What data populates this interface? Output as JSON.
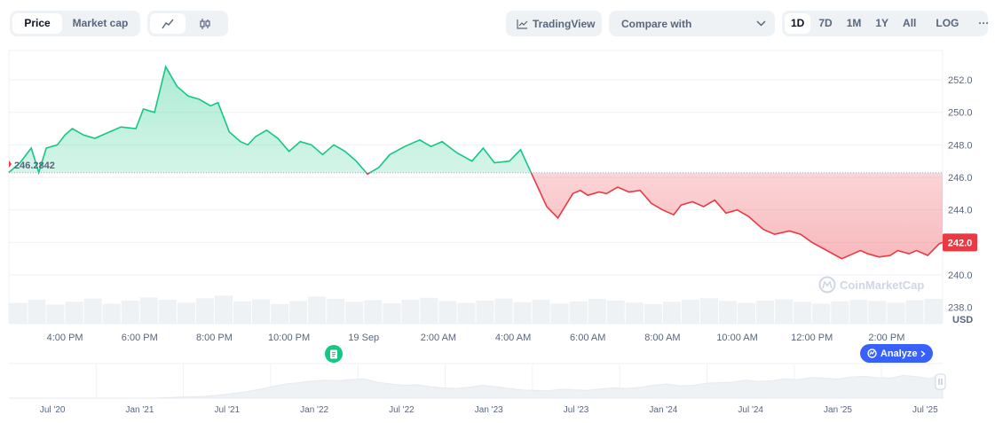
{
  "toolbar": {
    "metric_tabs": [
      {
        "label": "Price",
        "active": true
      },
      {
        "label": "Market cap",
        "active": false
      }
    ],
    "chart_types": [
      {
        "icon": "line-chart-icon",
        "active": true
      },
      {
        "icon": "candlestick-icon",
        "active": false
      }
    ],
    "tradingview_label": "TradingView",
    "compare_label": "Compare with",
    "ranges": [
      {
        "label": "1D",
        "active": true
      },
      {
        "label": "7D",
        "active": false
      },
      {
        "label": "1M",
        "active": false
      },
      {
        "label": "1Y",
        "active": false
      },
      {
        "label": "All",
        "active": false
      }
    ],
    "log_label": "LOG",
    "more_label": "···"
  },
  "chart_data": {
    "type": "area",
    "title": "",
    "baseline": 246.2842,
    "baseline_label": "246.2842",
    "current_value": 242.0,
    "current_label": "242.0",
    "currency_label": "USD",
    "watermark": "CoinMarketCap",
    "ylim": [
      237.0,
      253.8
    ],
    "y_ticks": [
      252.0,
      250.0,
      248.0,
      246.0,
      244.0,
      242.0,
      240.0,
      238.0
    ],
    "y_tick_labels": [
      "252.0",
      "250.0",
      "248.0",
      "246.0",
      "244.0",
      "242.0",
      "240.0",
      "238.0"
    ],
    "x_ticks": [
      1.5,
      3.5,
      5.5,
      7.5,
      9.5,
      11.5,
      13.5,
      15.5,
      17.5,
      19.5,
      21.5,
      23.5
    ],
    "x_tick_labels": [
      "4:00 PM",
      "6:00 PM",
      "8:00 PM",
      "10:00 PM",
      "19 Sep",
      "2:00 AM",
      "4:00 AM",
      "6:00 AM",
      "8:00 AM",
      "10:00 AM",
      "12:00 PM",
      "2:00 PM"
    ],
    "xlim": [
      0,
      25
    ],
    "series": [
      {
        "name": "price",
        "x": [
          0,
          0.3,
          0.6,
          0.8,
          1.0,
          1.3,
          1.5,
          1.7,
          2.0,
          2.3,
          2.6,
          3.0,
          3.4,
          3.6,
          3.9,
          4.2,
          4.5,
          4.8,
          5.1,
          5.4,
          5.6,
          5.9,
          6.2,
          6.4,
          6.6,
          6.9,
          7.2,
          7.5,
          7.8,
          8.1,
          8.4,
          8.7,
          9.0,
          9.3,
          9.6,
          9.9,
          10.2,
          10.6,
          11.0,
          11.3,
          11.6,
          12.0,
          12.4,
          12.7,
          13.0,
          13.4,
          13.7,
          14.0,
          14.4,
          14.7,
          15.1,
          15.3,
          15.5,
          15.8,
          16.0,
          16.3,
          16.6,
          16.9,
          17.2,
          17.5,
          17.8,
          18.0,
          18.3,
          18.6,
          18.9,
          19.2,
          19.5,
          19.8,
          20.2,
          20.5,
          20.9,
          21.2,
          21.5,
          21.9,
          22.3,
          22.6,
          22.8,
          23.0,
          23.3,
          23.6,
          23.8,
          24.1,
          24.3,
          24.6,
          24.9,
          25.0
        ],
        "values": [
          246.3,
          246.9,
          247.8,
          246.3,
          247.8,
          248.0,
          248.6,
          249.0,
          248.6,
          248.4,
          248.7,
          249.1,
          249.0,
          250.2,
          250.0,
          252.8,
          251.6,
          251.0,
          250.8,
          250.4,
          250.6,
          248.8,
          248.2,
          248.0,
          248.5,
          248.9,
          248.4,
          247.6,
          248.2,
          248.0,
          247.4,
          248.0,
          247.6,
          247.0,
          246.2,
          246.6,
          247.4,
          247.9,
          248.3,
          247.9,
          248.2,
          247.5,
          247.0,
          247.8,
          246.9,
          247.0,
          247.7,
          246.2,
          244.2,
          243.5,
          245.0,
          245.2,
          244.9,
          245.1,
          245.0,
          245.4,
          245.1,
          245.2,
          244.4,
          244.0,
          243.7,
          244.3,
          244.5,
          244.2,
          244.6,
          243.8,
          244.0,
          243.6,
          242.8,
          242.5,
          242.7,
          242.5,
          242.0,
          241.5,
          241.0,
          241.3,
          241.5,
          241.3,
          241.1,
          241.2,
          241.5,
          241.3,
          241.5,
          241.2,
          241.9,
          242.0
        ]
      }
    ],
    "volume": [
      0.52,
      0.6,
      0.48,
      0.55,
      0.63,
      0.5,
      0.58,
      0.66,
      0.6,
      0.53,
      0.64,
      0.7,
      0.56,
      0.61,
      0.49,
      0.57,
      0.68,
      0.62,
      0.55,
      0.59,
      0.51,
      0.6,
      0.65,
      0.57,
      0.52,
      0.58,
      0.63,
      0.54,
      0.6,
      0.5,
      0.56,
      0.62,
      0.58,
      0.53,
      0.49,
      0.55,
      0.6,
      0.64,
      0.57,
      0.52,
      0.58,
      0.61,
      0.55,
      0.5,
      0.56,
      0.6,
      0.57,
      0.53,
      0.59,
      0.62
    ],
    "navigator": {
      "labels": [
        "Jul '20",
        "Jan '21",
        "Jul '21",
        "Jan '22",
        "Jul '22",
        "Jan '23",
        "Jul '23",
        "Jan '24",
        "Jul '24",
        "Jan '25",
        "Jul '25"
      ],
      "label_x": [
        0.5,
        1.5,
        2.5,
        3.5,
        4.5,
        5.5,
        6.5,
        7.5,
        8.5,
        9.5,
        10.5
      ],
      "xlim": [
        0,
        10.7
      ],
      "values": [
        0,
        0,
        0,
        0,
        0,
        0,
        0,
        0,
        0,
        0,
        0,
        0,
        0.02,
        0.04,
        0.05,
        0.08,
        0.12,
        0.18,
        0.25,
        0.33,
        0.45,
        0.55,
        0.6,
        0.66,
        0.7,
        0.68,
        0.72,
        0.75,
        0.62,
        0.55,
        0.5,
        0.52,
        0.45,
        0.4,
        0.38,
        0.42,
        0.5,
        0.45,
        0.38,
        0.32,
        0.3,
        0.28,
        0.35,
        0.32,
        0.3,
        0.36,
        0.4,
        0.38,
        0.42,
        0.5,
        0.55,
        0.48,
        0.5,
        0.58,
        0.6,
        0.62,
        0.7,
        0.65,
        0.68,
        0.75,
        0.72,
        0.8,
        0.78,
        0.74,
        0.82,
        0.85,
        0.8,
        0.78,
        0.88,
        0.84,
        0.76,
        0.9
      ]
    },
    "news_marker_x": 8.7,
    "analyze_label": "Analyze",
    "analyze_x": 23.5
  }
}
